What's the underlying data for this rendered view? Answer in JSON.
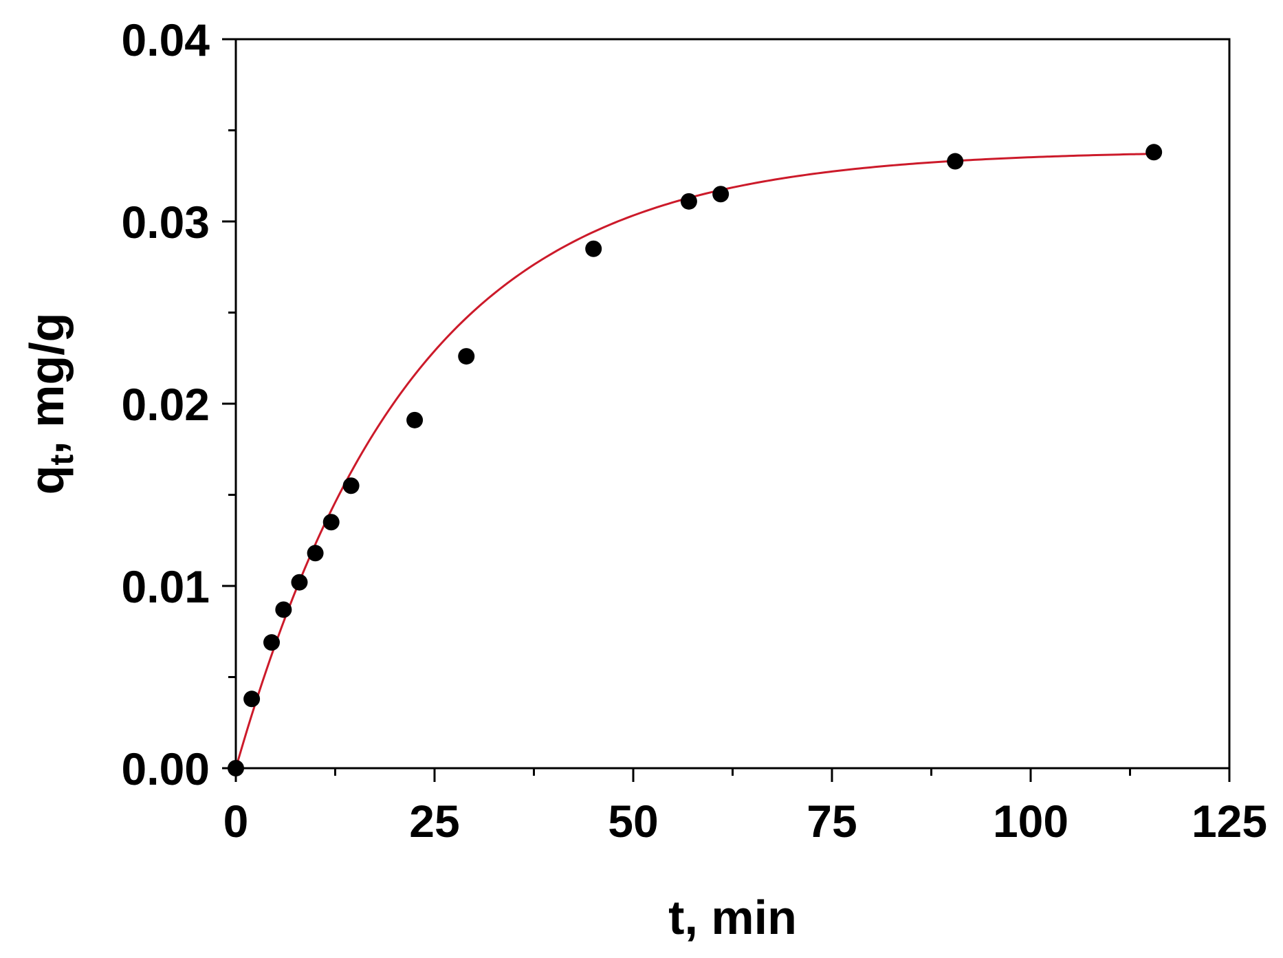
{
  "chart_data": {
    "type": "scatter",
    "title": "",
    "xlabel": "t, min",
    "ylabel_main": "q",
    "ylabel_sub": "t",
    "ylabel_rest": ", mg/g",
    "xlim": [
      0,
      125
    ],
    "ylim": [
      0,
      0.04
    ],
    "x_ticks": [
      0,
      25,
      50,
      75,
      100,
      125
    ],
    "x_tick_labels": [
      "0",
      "25",
      "50",
      "75",
      "100",
      "125"
    ],
    "y_ticks": [
      0,
      0.01,
      0.02,
      0.03,
      0.04
    ],
    "y_tick_labels": [
      "0.00",
      "0.01",
      "0.02",
      "0.03",
      "0.04"
    ],
    "grid": false,
    "series": [
      {
        "type": "scatter",
        "color": "#000000",
        "x": [
          0,
          2,
          4.5,
          6,
          8,
          10,
          12,
          14.5,
          22.5,
          29,
          45,
          57,
          61,
          90.5,
          115.5
        ],
        "y": [
          0,
          0.0038,
          0.0069,
          0.0087,
          0.0102,
          0.0118,
          0.0135,
          0.0155,
          0.0191,
          0.0226,
          0.0285,
          0.0311,
          0.0315,
          0.0333,
          0.0338
        ]
      },
      {
        "type": "line",
        "color": "#cc1a2a",
        "model": "qe*(1-exp(-k*t))",
        "qe": 0.0339,
        "k": 0.045
      }
    ]
  }
}
